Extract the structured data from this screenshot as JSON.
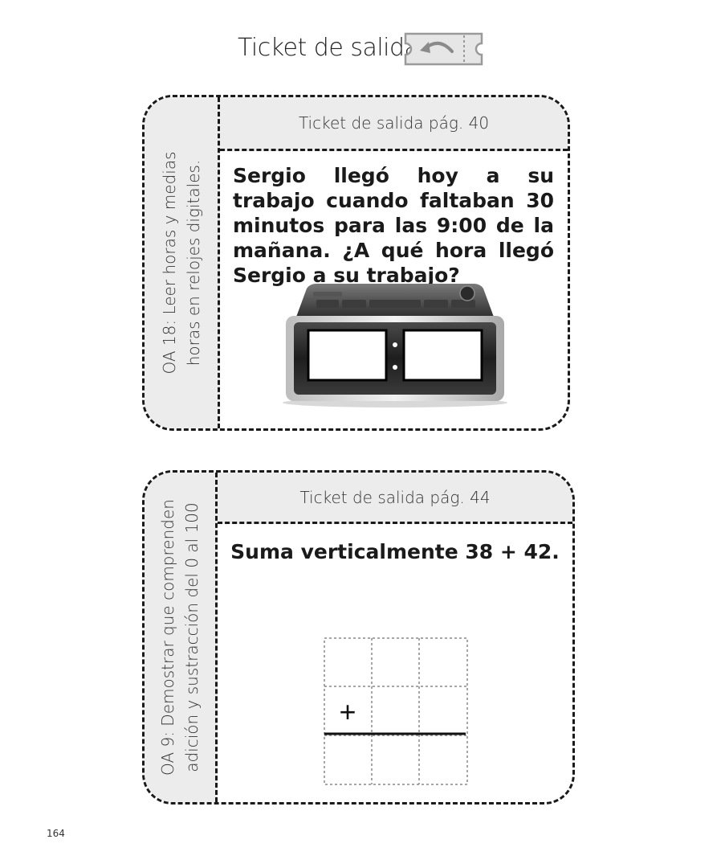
{
  "header": {
    "title": "Ticket de salida",
    "icon": "ticket-arrow-icon"
  },
  "cards": [
    {
      "side_label": [
        "OA 18: Leer horas y medias",
        "horas en relojes digitales."
      ],
      "top_label": "Ticket de salida pág. 40",
      "question": "Sergio llegó hoy a su trabajo cuando faltaban 30 minutos para las 9:00 de la mañana. ¿A qué hora llegó Sergio a su trabajo?",
      "image": "digital-clock-icon"
    },
    {
      "side_label": [
        "OA 9: Demostrar que comprenden",
        "adición y sustracción del 0 al 100"
      ],
      "top_label": "Ticket de salida pág. 44",
      "question": "Suma verticalmente 38 + 42.",
      "grid": {
        "rows": 3,
        "cols": 3,
        "operator": "+"
      }
    }
  ],
  "page_number": "164",
  "colors": {
    "panel": "#ececec",
    "border": "#1a1a1a",
    "text": "#1a1a1a"
  }
}
